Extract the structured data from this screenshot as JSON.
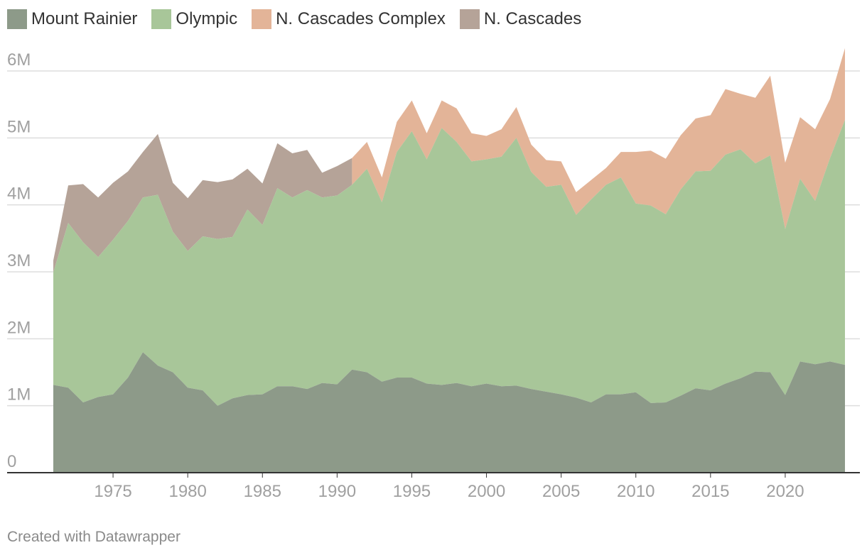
{
  "legend": [
    {
      "label": "Mount Rainier",
      "color": "#8d9a89"
    },
    {
      "label": "Olympic",
      "color": "#a8c699"
    },
    {
      "label": "N. Cascades Complex",
      "color": "#e3b498"
    },
    {
      "label": "N. Cascades",
      "color": "#b5a398"
    }
  ],
  "credit": "Created with Datawrapper",
  "chart_data": {
    "type": "area",
    "stacked": true,
    "title": "",
    "xlabel": "",
    "ylabel": "",
    "x": [
      1971,
      1972,
      1973,
      1974,
      1975,
      1976,
      1977,
      1978,
      1979,
      1980,
      1981,
      1982,
      1983,
      1984,
      1985,
      1986,
      1987,
      1988,
      1989,
      1990,
      1991,
      1992,
      1993,
      1994,
      1995,
      1996,
      1997,
      1998,
      1999,
      2000,
      2001,
      2002,
      2003,
      2004,
      2005,
      2006,
      2007,
      2008,
      2009,
      2010,
      2011,
      2012,
      2013,
      2014,
      2015,
      2016,
      2017,
      2018,
      2019,
      2020,
      2021,
      2022,
      2023,
      2024
    ],
    "xticks": [
      1975,
      1980,
      1985,
      1990,
      1995,
      2000,
      2005,
      2010,
      2015,
      2020
    ],
    "yticks": [
      0,
      1000000,
      2000000,
      3000000,
      4000000,
      5000000,
      6000000
    ],
    "ytick_labels": [
      "0",
      "1M",
      "2M",
      "3M",
      "4M",
      "5M",
      "6M"
    ],
    "ylim": [
      0,
      6000000
    ],
    "grid": true,
    "legend_position": "top-left",
    "series": [
      {
        "name": "Mount Rainier",
        "color": "#8d9a89",
        "values": [
          1310000,
          1270000,
          1050000,
          1130000,
          1170000,
          1420000,
          1800000,
          1600000,
          1500000,
          1270000,
          1230000,
          1000000,
          1110000,
          1160000,
          1170000,
          1290000,
          1290000,
          1250000,
          1340000,
          1320000,
          1540000,
          1500000,
          1360000,
          1420000,
          1420000,
          1330000,
          1310000,
          1340000,
          1290000,
          1330000,
          1290000,
          1300000,
          1250000,
          1210000,
          1170000,
          1120000,
          1050000,
          1170000,
          1170000,
          1200000,
          1040000,
          1050000,
          1150000,
          1260000,
          1230000,
          1330000,
          1410000,
          1510000,
          1500000,
          1160000,
          1660000,
          1620000,
          1660000,
          1610000
        ]
      },
      {
        "name": "Olympic",
        "color": "#a8c699",
        "values": [
          1680000,
          2460000,
          2390000,
          2090000,
          2310000,
          2340000,
          2310000,
          2550000,
          2100000,
          2040000,
          2300000,
          2490000,
          2410000,
          2770000,
          2530000,
          2960000,
          2820000,
          2970000,
          2770000,
          2820000,
          2760000,
          3040000,
          2680000,
          3370000,
          3680000,
          3350000,
          3840000,
          3600000,
          3360000,
          3350000,
          3430000,
          3700000,
          3240000,
          3060000,
          3130000,
          2730000,
          3030000,
          3130000,
          3240000,
          2820000,
          2950000,
          2810000,
          3080000,
          3240000,
          3280000,
          3420000,
          3420000,
          3110000,
          3240000,
          2480000,
          2730000,
          2440000,
          3040000,
          3660000
        ]
      },
      {
        "name": "N. Cascades Complex",
        "color": "#e3b498",
        "values": [
          0,
          0,
          0,
          0,
          0,
          0,
          0,
          0,
          0,
          0,
          0,
          0,
          0,
          0,
          0,
          0,
          0,
          0,
          0,
          0,
          0,
          0,
          0,
          0,
          0,
          0,
          0,
          0,
          0,
          0,
          0,
          0,
          0,
          0,
          0,
          0,
          0,
          0,
          0,
          0,
          0,
          0,
          0,
          0,
          0,
          0,
          0,
          0,
          0,
          0,
          0,
          0,
          0,
          0
        ]
      },
      {
        "name": "N. Cascades",
        "color": "#b5a398",
        "values": [
          0,
          0,
          0,
          0,
          0,
          0,
          0,
          0,
          0,
          0,
          0,
          0,
          0,
          0,
          0,
          0,
          0,
          0,
          0,
          0,
          0,
          0,
          0,
          0,
          0,
          0,
          0,
          0,
          0,
          0,
          0,
          0,
          0,
          0,
          0,
          0,
          0,
          0,
          0,
          0,
          0,
          0,
          0,
          0,
          0,
          0,
          0,
          0,
          0,
          0,
          0,
          0,
          0,
          0
        ]
      }
    ],
    "top_totals": [
      3170000,
      4290000,
      4310000,
      4110000,
      4330000,
      4500000,
      4790000,
      5060000,
      4330000,
      4100000,
      4370000,
      4340000,
      4380000,
      4540000,
      4320000,
      4920000,
      4770000,
      4820000,
      4480000,
      4580000,
      4700000,
      4940000,
      4410000,
      5240000,
      5560000,
      5070000,
      5560000,
      5440000,
      5070000,
      5030000,
      5130000,
      5460000,
      4900000,
      4670000,
      4650000,
      4190000,
      4370000,
      4550000,
      4790000,
      4790000,
      4810000,
      4690000,
      5040000,
      5290000,
      5340000,
      5730000,
      5660000,
      5600000,
      5930000,
      4630000,
      5310000,
      5130000,
      5580000,
      6340000
    ],
    "series_group_split": {
      "n_cascades_until": 1990,
      "complex_from": 1991
    }
  }
}
